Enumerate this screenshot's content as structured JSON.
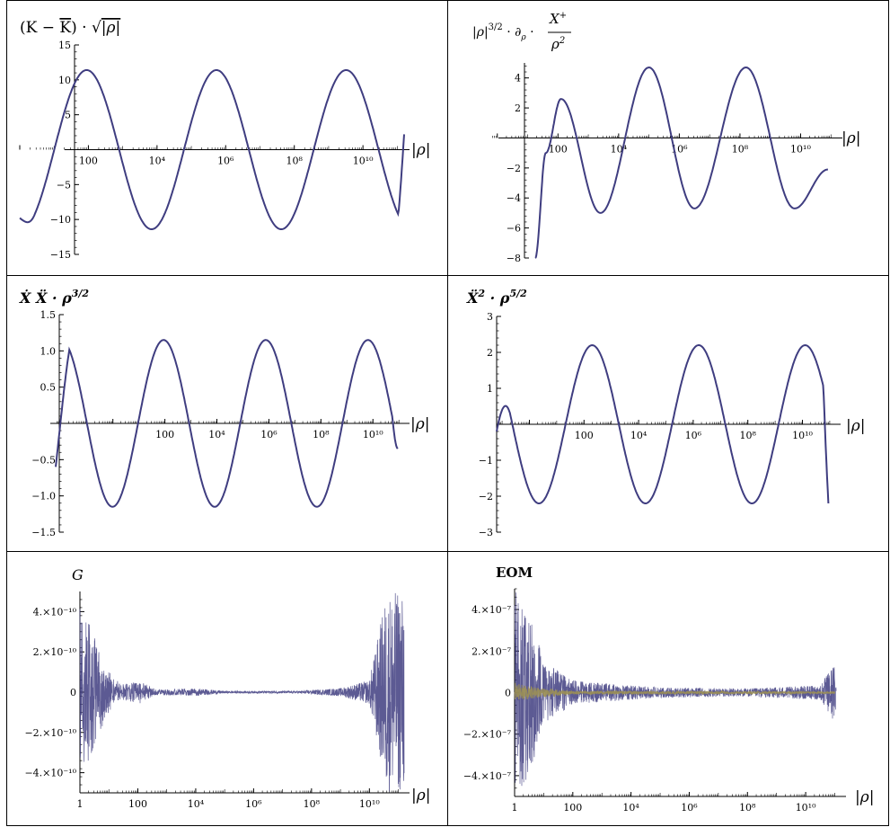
{
  "colors": {
    "curve": "#3f3d80",
    "curve2": "#9c9054",
    "axis": "#000000",
    "border": "#000000"
  },
  "panels": [
    {
      "id": "K-minus-Kbar",
      "title_parts": [
        "(K − ",
        "K",
        ") · √",
        "|ρ|"
      ],
      "x_label": "|ρ|",
      "chart_data": {
        "type": "line",
        "x_scale": "log10",
        "x_range_log10": [
          0.0,
          11.2
        ],
        "ylim": [
          -15,
          15
        ],
        "y_ticks": [
          -15,
          -10,
          -5,
          5,
          10,
          15
        ],
        "y_tick_labels": [
          "−15",
          "−10",
          "−5",
          "5",
          "10",
          "15"
        ],
        "x_tick_labels": [
          "100",
          "10⁴",
          "10⁶",
          "10⁸",
          "10¹⁰"
        ],
        "x_ticks_log10": [
          2,
          4,
          6,
          8,
          10
        ],
        "series": [
          {
            "kind": "sine",
            "amplitude": 11.4,
            "period_log10": 3.78,
            "peak_log10": 1.95,
            "x_start_log10": 0.0,
            "x_end_log10": 11.2,
            "y_start": -9.8,
            "y_end": 2.2
          }
        ]
      }
    },
    {
      "id": "rho-dX",
      "title_parts": [
        "|ρ|",
        "3/2",
        " · ∂",
        "ρ",
        " · ",
        "X",
        "+",
        "ρ",
        "2"
      ],
      "x_label": "|ρ|",
      "chart_data": {
        "type": "line",
        "x_scale": "log10",
        "x_range_log10": [
          -0.2,
          11.2
        ],
        "ylim": [
          -8,
          5
        ],
        "y_ticks": [
          -8,
          -6,
          -4,
          -2,
          2,
          4
        ],
        "y_tick_labels": [
          "−8",
          "−6",
          "−4",
          "−2",
          "2",
          "4"
        ],
        "x_tick_labels": [
          "100",
          "10⁴",
          "10⁶",
          "10⁸",
          "10¹⁰"
        ],
        "x_ticks_log10": [
          2,
          4,
          6,
          8,
          10
        ],
        "series": [
          {
            "kind": "growing-sine",
            "points_log10": [
              [
                1.25,
                -8.0
              ],
              [
                1.6,
                -1.0
              ],
              [
                2.1,
                2.6
              ],
              [
                3.4,
                -5.0
              ],
              [
                5.0,
                4.7
              ],
              [
                6.5,
                -4.7
              ],
              [
                8.2,
                4.7
              ],
              [
                9.8,
                -4.7
              ],
              [
                10.9,
                -2.1
              ]
            ]
          }
        ]
      }
    },
    {
      "id": "XdotXddot",
      "title_parts": [
        "Ẋ Ẍ · ρ",
        "3/2"
      ],
      "x_label": "|ρ|",
      "chart_data": {
        "type": "line",
        "x_scale": "log10",
        "x_range_log10": [
          -2.2,
          11.2
        ],
        "ylim": [
          -1.5,
          1.5
        ],
        "y_ticks": [
          -1.5,
          -1.0,
          -0.5,
          0.5,
          1.0,
          1.5
        ],
        "y_tick_labels": [
          "−1.5",
          "−1.0",
          "−0.5",
          "0.5",
          "1.0",
          "1.5"
        ],
        "x_tick_labels": [
          "100",
          "10⁴",
          "10⁶",
          "10⁸",
          "10¹⁰"
        ],
        "x_ticks_log10": [
          2,
          4,
          6,
          8,
          10
        ],
        "series": [
          {
            "kind": "sine",
            "amplitude": 1.15,
            "period_log10": 3.93,
            "peak_log10": 1.95,
            "x_start_log10": -2.2,
            "x_end_log10": 10.95,
            "y_start": -0.6,
            "y_end": -0.35,
            "first_trough": -0.93
          }
        ]
      }
    },
    {
      "id": "Xddot2",
      "title_parts": [
        "Ẍ",
        "2",
        " · ρ",
        "5/2"
      ],
      "x_label": "|ρ|",
      "chart_data": {
        "type": "line",
        "x_scale": "log10",
        "x_range_log10": [
          -1.2,
          11.2
        ],
        "ylim": [
          -3,
          3
        ],
        "y_ticks": [
          -3,
          -2,
          -1,
          1,
          2,
          3
        ],
        "y_tick_labels": [
          "−3",
          "−2",
          "−1",
          "1",
          "2",
          "3"
        ],
        "x_tick_labels": [
          "100",
          "10⁴",
          "10⁶",
          "10⁸",
          "10¹⁰"
        ],
        "x_ticks_log10": [
          2,
          4,
          6,
          8,
          10
        ],
        "series": [
          {
            "kind": "sine",
            "amplitude": 2.2,
            "period_log10": 3.9,
            "peak_log10": 2.3,
            "x_start_log10": -1.2,
            "x_end_log10": 10.95,
            "y_start": -0.2,
            "y_end": -2.2
          }
        ]
      }
    },
    {
      "id": "G",
      "title_parts": [
        "G"
      ],
      "x_label": "|ρ|",
      "chart_data": {
        "type": "line",
        "x_scale": "log10",
        "x_range_log10": [
          0,
          11.2
        ],
        "ylim": [
          -5e-10,
          5e-10
        ],
        "y_ticks": [
          -4e-10,
          -2e-10,
          0,
          2e-10,
          4e-10
        ],
        "y_tick_labels": [
          "−4.×10⁻¹⁰",
          "−2.×10⁻¹⁰",
          "0",
          "2.×10⁻¹⁰",
          "4.×10⁻¹⁰"
        ],
        "x_tick_labels": [
          "1",
          "100",
          "10⁴",
          "10⁶",
          "10⁸",
          "10¹⁰"
        ],
        "x_ticks_log10": [
          0,
          2,
          4,
          6,
          8,
          10
        ],
        "series": [
          {
            "kind": "noise",
            "envelope": [
              [
                0.0,
                4.2e-10
              ],
              [
                0.3,
                3.5e-10
              ],
              [
                0.9,
                1.2e-10
              ],
              [
                1.4,
                4e-11
              ],
              [
                2.1,
                5.5e-11
              ],
              [
                2.6,
                1.5e-11
              ],
              [
                4.1,
                1.8e-11
              ],
              [
                5.0,
                6e-12
              ],
              [
                7.5,
                6e-12
              ],
              [
                9.0,
                2e-11
              ],
              [
                10.0,
                6e-11
              ],
              [
                10.6,
                5e-10
              ],
              [
                11.2,
                5e-10
              ]
            ]
          }
        ]
      }
    },
    {
      "id": "EOM",
      "title_parts": [
        "EOM"
      ],
      "x_label": "|ρ|",
      "chart_data": {
        "type": "line",
        "x_scale": "log10",
        "x_range_log10": [
          0,
          11.2
        ],
        "ylim": [
          -5e-07,
          5e-07
        ],
        "y_ticks": [
          -4e-07,
          -2e-07,
          0,
          2e-07,
          4e-07
        ],
        "y_tick_labels": [
          "−4.×10⁻⁷",
          "−2.×10⁻⁷",
          "0",
          "2.×10⁻⁷",
          "4.×10⁻⁷"
        ],
        "x_tick_labels": [
          "1",
          "100",
          "10⁴",
          "10⁶",
          "10⁸",
          "10¹⁰"
        ],
        "x_ticks_log10": [
          0,
          2,
          4,
          6,
          8,
          10
        ],
        "series": [
          {
            "kind": "noise",
            "envelope": [
              [
                0.0,
                5e-07
              ],
              [
                0.5,
                4e-07
              ],
              [
                1.0,
                1.5e-07
              ],
              [
                2.0,
                6e-08
              ],
              [
                3.0,
                4.5e-08
              ],
              [
                5.0,
                2.5e-08
              ],
              [
                8.0,
                2e-08
              ],
              [
                10.5,
                3.5e-08
              ],
              [
                11.0,
                1.5e-07
              ],
              [
                11.05,
                3e-08
              ]
            ]
          },
          {
            "kind": "noise-secondary",
            "envelope": [
              [
                0.0,
                5e-08
              ],
              [
                0.5,
                3e-08
              ],
              [
                2.0,
                8e-09
              ],
              [
                11.0,
                5e-09
              ]
            ]
          }
        ]
      }
    }
  ]
}
